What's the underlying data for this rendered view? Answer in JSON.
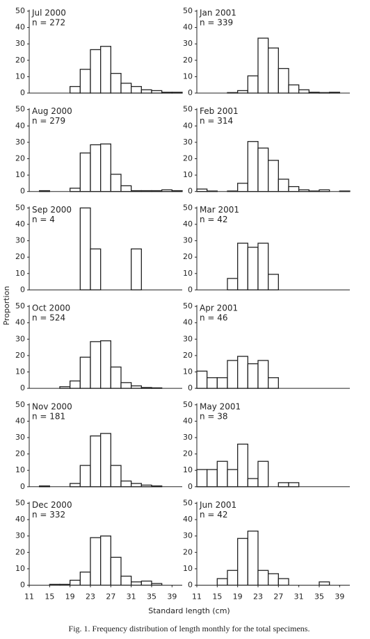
{
  "ylabel": "Proportion",
  "xlabel": "Standard length (cm)",
  "caption": "Fig. 1. Frequency distribution of length monthly for the total specimens.",
  "chart_data": [
    {
      "type": "histogram",
      "title": "Jul 2000",
      "subtitle": "n = 272",
      "bins": [
        11,
        13,
        15,
        17,
        19,
        21,
        23,
        25,
        27,
        29,
        31,
        33,
        35,
        37,
        39,
        41
      ],
      "values": [
        0,
        0,
        0,
        0,
        4,
        14.5,
        26.5,
        28.5,
        12,
        6,
        4,
        2,
        1.5,
        0.5,
        0.5
      ],
      "xlim": [
        11,
        41
      ],
      "ylim": [
        0,
        50
      ],
      "yticks": [
        0,
        10,
        20,
        30,
        40,
        50
      ],
      "color": "#ffffff"
    },
    {
      "type": "histogram",
      "title": "Jan 2001",
      "subtitle": "n = 339",
      "bins": [
        11,
        13,
        15,
        17,
        19,
        21,
        23,
        25,
        27,
        29,
        31,
        33,
        35,
        37,
        39,
        41
      ],
      "values": [
        0,
        0,
        0,
        0.3,
        1.5,
        10.5,
        33.5,
        27.5,
        15,
        5,
        2,
        0.5,
        0.3,
        0.5,
        0
      ],
      "xlim": [
        11,
        41
      ],
      "ylim": [
        0,
        50
      ],
      "yticks": [
        0,
        10,
        20,
        30,
        40,
        50
      ],
      "color": "#ffffff"
    },
    {
      "type": "histogram",
      "title": "Aug 2000",
      "subtitle": "n = 279",
      "bins": [
        11,
        13,
        15,
        17,
        19,
        21,
        23,
        25,
        27,
        29,
        31,
        33,
        35,
        37,
        39,
        41
      ],
      "values": [
        0,
        0.5,
        0,
        0,
        2,
        23.5,
        28.5,
        29,
        10.5,
        3.5,
        0.5,
        0.5,
        0.5,
        1,
        0.5
      ],
      "xlim": [
        11,
        41
      ],
      "ylim": [
        0,
        50
      ],
      "yticks": [
        0,
        10,
        20,
        30,
        40,
        50
      ],
      "color": "#ffffff"
    },
    {
      "type": "histogram",
      "title": "Feb 2001",
      "subtitle": "n = 314",
      "bins": [
        11,
        13,
        15,
        17,
        19,
        21,
        23,
        25,
        27,
        29,
        31,
        33,
        35,
        37,
        39,
        41
      ],
      "values": [
        1.5,
        0.3,
        0,
        0.3,
        5,
        30.5,
        26.5,
        19,
        7.5,
        3,
        1,
        0.3,
        1,
        0,
        0.3
      ],
      "xlim": [
        11,
        41
      ],
      "ylim": [
        0,
        50
      ],
      "yticks": [
        0,
        10,
        20,
        30,
        40,
        50
      ],
      "color": "#ffffff"
    },
    {
      "type": "histogram",
      "title": "Sep 2000",
      "subtitle": "n = 4",
      "bins": [
        11,
        13,
        15,
        17,
        19,
        21,
        23,
        25,
        27,
        29,
        31,
        33,
        35,
        37,
        39,
        41
      ],
      "values": [
        0,
        0,
        0,
        0,
        0,
        50,
        25,
        0,
        0,
        0,
        25,
        0,
        0,
        0,
        0
      ],
      "xlim": [
        11,
        41
      ],
      "ylim": [
        0,
        50
      ],
      "yticks": [
        0,
        10,
        20,
        30,
        40,
        50
      ],
      "color": "#ffffff"
    },
    {
      "type": "histogram",
      "title": "Mar 2001",
      "subtitle": "n = 42",
      "bins": [
        11,
        13,
        15,
        17,
        19,
        21,
        23,
        25,
        27,
        29,
        31,
        33,
        35,
        37,
        39,
        41
      ],
      "values": [
        0,
        0,
        0,
        7,
        28.5,
        26,
        28.5,
        9.5,
        0,
        0,
        0,
        0,
        0,
        0,
        0
      ],
      "xlim": [
        11,
        41
      ],
      "ylim": [
        0,
        50
      ],
      "yticks": [
        0,
        10,
        20,
        30,
        40,
        50
      ],
      "color": "#ffffff"
    },
    {
      "type": "histogram",
      "title": "Oct 2000",
      "subtitle": "n = 524",
      "bins": [
        11,
        13,
        15,
        17,
        19,
        21,
        23,
        25,
        27,
        29,
        31,
        33,
        35,
        37,
        39,
        41
      ],
      "values": [
        0,
        0,
        0,
        1,
        4.5,
        19,
        28.5,
        29,
        13,
        3.5,
        1.5,
        0.5,
        0.3,
        0,
        0
      ],
      "xlim": [
        11,
        41
      ],
      "ylim": [
        0,
        50
      ],
      "yticks": [
        0,
        10,
        20,
        30,
        40,
        50
      ],
      "color": "#ffffff"
    },
    {
      "type": "histogram",
      "title": "Apr 2001",
      "subtitle": "n = 46",
      "bins": [
        11,
        13,
        15,
        17,
        19,
        21,
        23,
        25,
        27,
        29,
        31,
        33,
        35,
        37,
        39,
        41
      ],
      "values": [
        10.5,
        6.5,
        6.5,
        17,
        19.5,
        15,
        17,
        6.5,
        0,
        0,
        0,
        0,
        0,
        0,
        0
      ],
      "xlim": [
        11,
        41
      ],
      "ylim": [
        0,
        50
      ],
      "yticks": [
        0,
        10,
        20,
        30,
        40,
        50
      ],
      "color": "#ffffff"
    },
    {
      "type": "histogram",
      "title": "Nov 2000",
      "subtitle": "n = 181",
      "bins": [
        11,
        13,
        15,
        17,
        19,
        21,
        23,
        25,
        27,
        29,
        31,
        33,
        35,
        37,
        39,
        41
      ],
      "values": [
        0,
        0.5,
        0,
        0,
        2,
        13,
        31,
        32.5,
        13,
        3.5,
        2,
        1,
        0.5,
        0,
        0
      ],
      "xlim": [
        11,
        41
      ],
      "ylim": [
        0,
        50
      ],
      "yticks": [
        0,
        10,
        20,
        30,
        40,
        50
      ],
      "color": "#ffffff"
    },
    {
      "type": "histogram",
      "title": "May 2001",
      "subtitle": "n = 38",
      "bins": [
        11,
        13,
        15,
        17,
        19,
        21,
        23,
        25,
        27,
        29,
        31,
        33,
        35,
        37,
        39,
        41
      ],
      "values": [
        10.5,
        10.5,
        15.5,
        10.5,
        26,
        5,
        15.5,
        0,
        2.5,
        2.5,
        0,
        0,
        0,
        0,
        0
      ],
      "xlim": [
        11,
        41
      ],
      "ylim": [
        0,
        50
      ],
      "yticks": [
        0,
        10,
        20,
        30,
        40,
        50
      ],
      "color": "#ffffff"
    },
    {
      "type": "histogram",
      "title": "Dec 2000",
      "subtitle": "n = 332",
      "bins": [
        11,
        13,
        15,
        17,
        19,
        21,
        23,
        25,
        27,
        29,
        31,
        33,
        35,
        37,
        39,
        41
      ],
      "values": [
        0,
        0,
        0.5,
        0.5,
        3,
        8,
        29,
        30,
        17,
        5.5,
        2,
        2.5,
        1,
        0,
        0
      ],
      "xlim": [
        11,
        41
      ],
      "ylim": [
        0,
        50
      ],
      "yticks": [
        0,
        10,
        20,
        30,
        40,
        50
      ],
      "xticks": [
        11,
        15,
        19,
        23,
        27,
        31,
        35,
        39
      ],
      "color": "#ffffff"
    },
    {
      "type": "histogram",
      "title": "Jun 2001",
      "subtitle": "n = 42",
      "bins": [
        11,
        13,
        15,
        17,
        19,
        21,
        23,
        25,
        27,
        29,
        31,
        33,
        35,
        37,
        39,
        41
      ],
      "values": [
        0,
        0,
        4,
        9,
        28.5,
        33,
        9,
        7,
        4,
        0,
        0,
        0,
        2,
        0,
        0
      ],
      "xlim": [
        11,
        41
      ],
      "ylim": [
        0,
        50
      ],
      "yticks": [
        0,
        10,
        20,
        30,
        40,
        50
      ],
      "xticks": [
        11,
        15,
        19,
        23,
        27,
        31,
        35,
        39
      ],
      "color": "#ffffff"
    }
  ]
}
